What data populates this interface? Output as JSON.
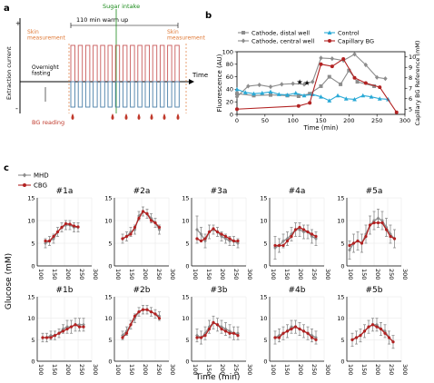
{
  "panels": {
    "a": "a",
    "b": "b",
    "c": "c"
  },
  "colors": {
    "mhd": "#8c8c8c",
    "cbg": "#b22222",
    "cyan": "#29a9d6",
    "orange": "#e07b39",
    "green": "#1a8a1a",
    "red": "#c0392b",
    "blue": "#4a7fa8",
    "pulse_red": "#c95a5a"
  },
  "panel_a": {
    "warmup_label": "110 min warm up",
    "sugar_label": "Sugar intake",
    "skin_left": "Skin\nmeasurement",
    "skin_right": "Skin\nmeasurement",
    "fasting": "Overnight\nfasting",
    "bg_reading": "BG reading",
    "yaxis": "Extraction current",
    "xaxis": "Time",
    "plus": "+",
    "minus": "-"
  },
  "chart_data": [
    {
      "type": "line",
      "id": "b",
      "title": "",
      "xlabel": "Time (min)",
      "ylabel": "Fluorescence (AU)",
      "y2label": "Capillary BG Reference (mM)",
      "xlim": [
        0,
        300
      ],
      "ylim": [
        0,
        100
      ],
      "y2lim": [
        4.5,
        10.5
      ],
      "xticks": [
        0,
        50,
        100,
        150,
        200,
        250,
        300
      ],
      "yticks": [
        0,
        20,
        40,
        60,
        80,
        100
      ],
      "y2ticks": [
        5,
        6,
        7,
        8,
        9,
        10
      ],
      "legend": "top",
      "series": [
        {
          "name": "Cathode, distal well",
          "axis": "left",
          "color": "#8c8c8c",
          "marker": "square",
          "x": [
            0,
            30,
            60,
            90,
            110,
            130,
            150,
            165,
            185,
            200,
            215,
            245
          ],
          "y": [
            33,
            30,
            31,
            30,
            29,
            33,
            45,
            60,
            48,
            70,
            52,
            45
          ]
        },
        {
          "name": "Cathode, central well",
          "axis": "left",
          "color": "#8c8c8c",
          "marker": "diamond",
          "x": [
            0,
            20,
            40,
            60,
            80,
            100,
            120,
            135,
            150,
            170,
            190,
            210,
            230,
            250,
            265
          ],
          "y": [
            28,
            45,
            47,
            44,
            48,
            49,
            48,
            52,
            90,
            89,
            86,
            96,
            79,
            59,
            57
          ]
        },
        {
          "name": "Control",
          "axis": "left",
          "color": "#29a9d6",
          "marker": "triangle",
          "x": [
            0,
            15,
            30,
            45,
            60,
            75,
            90,
            105,
            120,
            135,
            150,
            165,
            180,
            195,
            210,
            225,
            240,
            255,
            270
          ],
          "y": [
            40,
            35,
            33,
            34,
            36,
            32,
            31,
            34,
            30,
            32,
            28,
            22,
            30,
            25,
            24,
            30,
            28,
            25,
            24
          ]
        },
        {
          "name": "Capillary BG",
          "axis": "right",
          "color": "#b22222",
          "marker": "circle",
          "x": [
            0,
            110,
            130,
            150,
            170,
            190,
            210,
            230,
            255,
            285
          ],
          "y": [
            5.0,
            5.3,
            5.6,
            9.3,
            9.1,
            9.8,
            8.0,
            7.5,
            7.1,
            4.7
          ]
        }
      ],
      "stars": [
        {
          "x": 112,
          "y": 52
        },
        {
          "x": 125,
          "y": 51
        }
      ]
    },
    {
      "type": "line",
      "id": "c",
      "legend": "top-left",
      "legend_entries": [
        "MHD",
        "CBG"
      ],
      "ylabel": "Glucose (mM)",
      "xlabel": "Time (min)",
      "xlim": [
        100,
        300
      ],
      "ylim": [
        0,
        15
      ],
      "xticks": [
        100,
        150,
        200,
        250,
        300
      ],
      "yticks": [
        0,
        5,
        10,
        15
      ],
      "subplots": [
        {
          "title": "#1a",
          "mhd": {
            "x": [
              130,
              145,
              160,
              175,
              190,
              205,
              220,
              235,
              250
            ],
            "y": [
              5,
              5.5,
              6,
              7.5,
              8.5,
              9,
              9,
              8.5,
              8.5
            ],
            "err": [
              1,
              1,
              1,
              1,
              1,
              1,
              1,
              1,
              1
            ]
          },
          "cbg": {
            "x": [
              130,
              145,
              160,
              175,
              190,
              205,
              220,
              235,
              250
            ],
            "y": [
              5.5,
              5.5,
              6.5,
              7.5,
              8.5,
              9.3,
              9.2,
              8.8,
              8.6
            ]
          }
        },
        {
          "title": "#2a",
          "mhd": {
            "x": [
              130,
              145,
              160,
              175,
              190,
              205,
              220,
              235,
              250,
              265
            ],
            "y": [
              6,
              6.5,
              7.5,
              8,
              11,
              12,
              11.5,
              10.5,
              9.5,
              8
            ],
            "err": [
              1,
              1,
              1,
              1,
              1,
              1,
              1,
              1,
              1,
              1
            ]
          },
          "cbg": {
            "x": [
              130,
              145,
              160,
              175,
              190,
              205,
              220,
              235,
              250,
              265
            ],
            "y": [
              6,
              6.5,
              7,
              8.5,
              10.5,
              12,
              11.5,
              10,
              9.5,
              8.5
            ]
          }
        },
        {
          "title": "#3a",
          "mhd": {
            "x": [
              120,
              135,
              150,
              165,
              180,
              195,
              210,
              225,
              240,
              255,
              270
            ],
            "y": [
              8,
              7,
              5.5,
              7.5,
              8,
              7.5,
              6.5,
              6,
              5.5,
              5.5,
              5
            ],
            "err": [
              3,
              1.5,
              1.5,
              1.5,
              1,
              1,
              1,
              1,
              1,
              1,
              1
            ]
          },
          "cbg": {
            "x": [
              120,
              135,
              150,
              165,
              180,
              195,
              210,
              225,
              240,
              255,
              270
            ],
            "y": [
              6,
              5.5,
              6,
              7.5,
              8.2,
              7.5,
              7,
              6.5,
              6,
              5.5,
              5.5
            ]
          }
        },
        {
          "title": "#4a",
          "mhd": {
            "x": [
              120,
              135,
              150,
              165,
              180,
              195,
              210,
              225,
              240,
              255,
              270
            ],
            "y": [
              4,
              4.5,
              5.5,
              6,
              7,
              8,
              8,
              7.5,
              7.5,
              6.5,
              6
            ],
            "err": [
              2.5,
              1.5,
              1.5,
              1.5,
              1.5,
              1.5,
              1.5,
              1.5,
              1.5,
              1.5,
              1.5
            ]
          },
          "cbg": {
            "x": [
              120,
              135,
              150,
              165,
              180,
              195,
              210,
              225,
              240,
              255,
              270
            ],
            "y": [
              4.5,
              4.5,
              4.5,
              5.5,
              6.5,
              8,
              8.5,
              8,
              7.5,
              7,
              6.5
            ]
          }
        },
        {
          "title": "#5a",
          "mhd": {
            "x": [
              110,
              125,
              140,
              155,
              170,
              185,
              200,
              215,
              230,
              245,
              260,
              275
            ],
            "y": [
              3.5,
              5,
              5.5,
              5,
              7,
              9,
              10,
              10.5,
              10,
              8.5,
              7,
              6
            ],
            "err": [
              2,
              2,
              2,
              2,
              2,
              2,
              2,
              2,
              2,
              2,
              2,
              2
            ]
          },
          "cbg": {
            "x": [
              110,
              125,
              140,
              155,
              170,
              185,
              200,
              215,
              230,
              245,
              260,
              275
            ],
            "y": [
              4.5,
              5,
              5.5,
              5,
              6.5,
              9,
              9.5,
              9.5,
              9.5,
              8,
              6.5,
              6
            ]
          }
        },
        {
          "title": "#1b",
          "mhd": {
            "x": [
              120,
              135,
              150,
              165,
              180,
              195,
              210,
              225,
              240,
              255,
              270
            ],
            "y": [
              5.5,
              5.5,
              6,
              6,
              6.5,
              7.5,
              8,
              8,
              8.5,
              8.5,
              8.5
            ],
            "err": [
              1,
              1,
              1,
              1,
              1,
              1,
              1.5,
              1.5,
              1.5,
              1.5,
              1.5
            ]
          },
          "cbg": {
            "x": [
              120,
              135,
              150,
              165,
              180,
              195,
              210,
              225,
              240,
              255,
              270
            ],
            "y": [
              5.5,
              5.5,
              5.5,
              6,
              6.5,
              7,
              7.5,
              8,
              8.5,
              8,
              8
            ]
          }
        },
        {
          "title": "#2b",
          "mhd": {
            "x": [
              130,
              145,
              160,
              175,
              190,
              205,
              220,
              235,
              250,
              265
            ],
            "y": [
              6,
              7,
              8.5,
              10,
              11.5,
              12,
              12,
              11.5,
              11,
              10.5
            ],
            "err": [
              1,
              1,
              1,
              1,
              1,
              1,
              1,
              1,
              1,
              1
            ]
          },
          "cbg": {
            "x": [
              130,
              145,
              160,
              175,
              190,
              205,
              220,
              235,
              250,
              265
            ],
            "y": [
              5.5,
              6.5,
              8.5,
              10.5,
              11.5,
              12,
              12,
              11.5,
              11,
              10
            ]
          }
        },
        {
          "title": "#3b",
          "mhd": {
            "x": [
              120,
              135,
              150,
              165,
              180,
              195,
              210,
              225,
              240,
              255,
              270
            ],
            "y": [
              6,
              5.5,
              6.5,
              8,
              9,
              8.5,
              8,
              7.5,
              7,
              6.5,
              6.5
            ],
            "err": [
              1.5,
              1.5,
              1.5,
              1.5,
              1.5,
              1.5,
              1.5,
              1.5,
              1.5,
              1.5,
              1.5
            ]
          },
          "cbg": {
            "x": [
              120,
              135,
              150,
              165,
              180,
              195,
              210,
              225,
              240,
              255,
              270
            ],
            "y": [
              5.5,
              5.5,
              6,
              7.5,
              9,
              8.5,
              7.5,
              7,
              6.5,
              6.5,
              6
            ]
          }
        },
        {
          "title": "#4b",
          "mhd": {
            "x": [
              120,
              135,
              150,
              165,
              180,
              195,
              210,
              225,
              240,
              255,
              270
            ],
            "y": [
              5.5,
              6,
              6.5,
              7,
              8,
              8,
              7.5,
              7,
              6.5,
              6,
              5.5
            ],
            "err": [
              1.5,
              1.5,
              1.5,
              1.5,
              1.5,
              1.5,
              1.5,
              1.5,
              1.5,
              1.5,
              1.5
            ]
          },
          "cbg": {
            "x": [
              120,
              135,
              150,
              165,
              180,
              195,
              210,
              225,
              240,
              255,
              270
            ],
            "y": [
              5.5,
              5.5,
              6.5,
              7,
              7.5,
              8,
              7.5,
              7,
              6.5,
              5.5,
              5
            ]
          }
        },
        {
          "title": "#5b",
          "mhd": {
            "x": [
              120,
              135,
              150,
              165,
              180,
              195,
              210,
              225,
              240,
              255,
              270
            ],
            "y": [
              5,
              5.5,
              6,
              7,
              8,
              8.5,
              8.5,
              7.5,
              7,
              5.5,
              4.5
            ],
            "err": [
              1.5,
              1.5,
              1.5,
              1.5,
              1.5,
              1.5,
              1.5,
              1.5,
              1.5,
              1.5,
              1.5
            ]
          },
          "cbg": {
            "x": [
              120,
              135,
              150,
              165,
              180,
              195,
              210,
              225,
              240,
              255,
              270
            ],
            "y": [
              5,
              5.5,
              6,
              7,
              8,
              8.5,
              8,
              7.5,
              6.5,
              5.5,
              4.5
            ]
          }
        }
      ]
    }
  ]
}
